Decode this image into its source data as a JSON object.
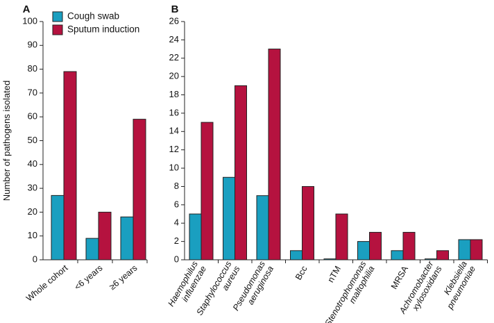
{
  "chart_data": [
    {
      "panel": "A",
      "type": "bar",
      "ylabel": "Number of pathogens isolated",
      "ylim": [
        0,
        100
      ],
      "yticks": [
        0,
        10,
        20,
        30,
        40,
        50,
        60,
        70,
        80,
        90,
        100
      ],
      "categories": [
        {
          "lines": [
            "Whole cohort"
          ],
          "italic": false
        },
        {
          "lines": [
            "<6 years"
          ],
          "italic": false
        },
        {
          "lines": [
            "≥6 years"
          ],
          "italic": false
        }
      ],
      "series": [
        {
          "name": "Cough swab",
          "color": "#1a9fc0",
          "values": [
            27,
            9,
            18
          ]
        },
        {
          "name": "Sputum induction",
          "color": "#b5123f",
          "values": [
            79,
            20,
            59
          ]
        }
      ],
      "legend": "top-left"
    },
    {
      "panel": "B",
      "type": "bar",
      "ylim": [
        0,
        26
      ],
      "yticks": [
        0,
        2,
        4,
        6,
        8,
        10,
        12,
        14,
        16,
        18,
        20,
        22,
        24,
        26
      ],
      "categories": [
        {
          "lines": [
            "Haemophilus",
            "influenzae"
          ],
          "italic": true
        },
        {
          "lines": [
            "Staphylococcus",
            "aureus"
          ],
          "italic": true
        },
        {
          "lines": [
            "Pseudomonas",
            "aeruginosa"
          ],
          "italic": true
        },
        {
          "lines": [
            "Bcc"
          ],
          "italic": false
        },
        {
          "lines": [
            "nTM"
          ],
          "italic": false
        },
        {
          "lines": [
            "Stenotrophomonas",
            "maltophilia"
          ],
          "italic": true
        },
        {
          "lines": [
            "MRSA"
          ],
          "italic": false
        },
        {
          "lines": [
            "Achromobacter",
            "xylosoxidans"
          ],
          "italic": true
        },
        {
          "lines": [
            "Klebsiella",
            "pneumoniae"
          ],
          "italic": true
        }
      ],
      "series": [
        {
          "name": "Cough swab",
          "color": "#1a9fc0",
          "values": [
            5,
            9,
            7,
            1,
            0.1,
            2,
            1,
            0.1,
            2.2
          ]
        },
        {
          "name": "Sputum induction",
          "color": "#b5123f",
          "values": [
            15,
            19,
            23,
            8,
            5,
            3,
            3,
            1,
            2.2
          ]
        }
      ]
    }
  ]
}
